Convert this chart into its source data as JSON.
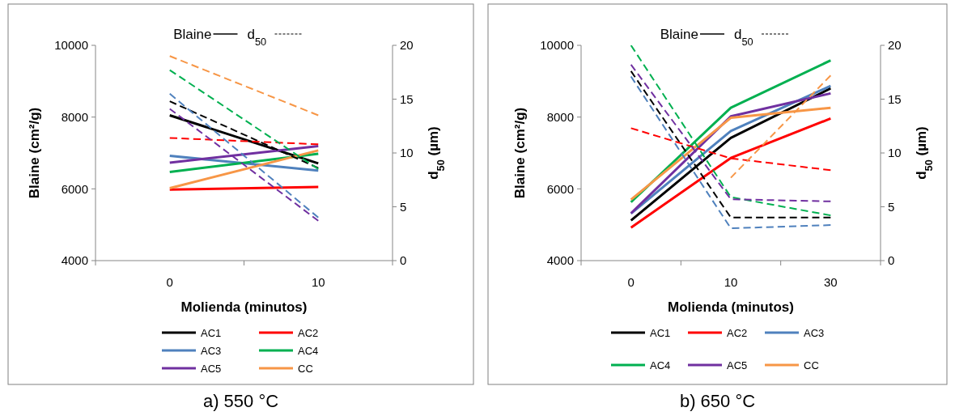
{
  "chart_data": [
    {
      "type": "line",
      "title": "a)  550 °C",
      "xlabel": "Molienda (minutos)",
      "ylabel": "Blaine (cm²/g)",
      "y2label": "d$_{50}$ (µm)",
      "annotations": [
        "Blaine",
        "d$_{50}$"
      ],
      "categories": [
        "0",
        "10"
      ],
      "ylim": [
        4000,
        10000
      ],
      "yticks": [
        4000,
        6000,
        8000,
        10000
      ],
      "y2lim": [
        0,
        20
      ],
      "y2ticks": [
        0,
        5,
        10,
        15,
        20
      ],
      "legend": "bottom",
      "marker": "none",
      "series": [
        {
          "name": "AC1",
          "color": "#000000",
          "values": [
            8050,
            6710
          ]
        },
        {
          "name": "AC2",
          "color": "#ff0000",
          "values": [
            5980,
            6050
          ]
        },
        {
          "name": "AC3",
          "color": "#4f81bd",
          "values": [
            6920,
            6510
          ]
        },
        {
          "name": "AC4",
          "color": "#00b050",
          "values": [
            6470,
            6980
          ]
        },
        {
          "name": "AC5",
          "color": "#7030a0",
          "values": [
            6730,
            7190
          ]
        },
        {
          "name": "CC",
          "color": "#f79646",
          "values": [
            6020,
            7070
          ]
        },
        {
          "color": "#000000",
          "values": [
            14.8,
            8.6
          ],
          "axis": "y2",
          "line_style": "dashed"
        },
        {
          "color": "#ff0000",
          "values": [
            11.4,
            10.8
          ],
          "axis": "y2",
          "line_style": "dashed"
        },
        {
          "color": "#4f81bd",
          "values": [
            15.5,
            4.0
          ],
          "axis": "y2",
          "line_style": "dashed"
        },
        {
          "color": "#00b050",
          "values": [
            17.7,
            8.5
          ],
          "axis": "y2",
          "line_style": "dashed"
        },
        {
          "color": "#7030a0",
          "values": [
            14.1,
            3.7
          ],
          "axis": "y2",
          "line_style": "dashed"
        },
        {
          "color": "#f79646",
          "values": [
            19.0,
            13.5
          ],
          "axis": "y2",
          "line_style": "dashed"
        }
      ]
    },
    {
      "type": "line",
      "title": "b)  650 °C",
      "xlabel": "Molienda (minutos)",
      "ylabel": "Blaine (cm²/g)",
      "y2label": "d$_{50}$ (µm)",
      "annotations": [
        "Blaine",
        "d$_{50}$"
      ],
      "categories": [
        "0",
        "10",
        "30"
      ],
      "ylim": [
        4000,
        10000
      ],
      "yticks": [
        4000,
        6000,
        8000,
        10000
      ],
      "y2lim": [
        0,
        20
      ],
      "y2ticks": [
        0,
        5,
        10,
        15,
        20
      ],
      "legend": "bottom",
      "marker": "none",
      "series": [
        {
          "name": "AC1",
          "color": "#000000",
          "values": [
            5120,
            7420,
            8800
          ]
        },
        {
          "name": "AC2",
          "color": "#ff0000",
          "values": [
            4920,
            6860,
            7960
          ]
        },
        {
          "name": "AC3",
          "color": "#4f81bd",
          "values": [
            5310,
            7610,
            8870
          ]
        },
        {
          "name": "AC4",
          "color": "#00b050",
          "values": [
            5630,
            8260,
            9580
          ]
        },
        {
          "name": "AC5",
          "color": "#7030a0",
          "values": [
            5320,
            8020,
            8660
          ]
        },
        {
          "name": "CC",
          "color": "#f79646",
          "values": [
            5700,
            7980,
            8260
          ]
        },
        {
          "color": "#000000",
          "values": [
            17.6,
            4.0,
            4.0
          ],
          "axis": "y2",
          "line_style": "dashed"
        },
        {
          "color": "#ff0000",
          "values": [
            12.3,
            9.5,
            8.4
          ],
          "axis": "y2",
          "line_style": "dashed"
        },
        {
          "color": "#4f81bd",
          "values": [
            17.1,
            3.0,
            3.3
          ],
          "axis": "y2",
          "line_style": "dashed"
        },
        {
          "color": "#00b050",
          "values": [
            20.0,
            5.9,
            4.2
          ],
          "axis": "y2",
          "line_style": "dashed"
        },
        {
          "color": "#7030a0",
          "values": [
            18.2,
            5.7,
            5.5
          ],
          "axis": "y2",
          "line_style": "dashed"
        },
        {
          "color": "#f79646",
          "values": [
            null,
            7.7,
            17.2
          ],
          "axis": "y2",
          "line_style": "dashed"
        }
      ]
    }
  ]
}
